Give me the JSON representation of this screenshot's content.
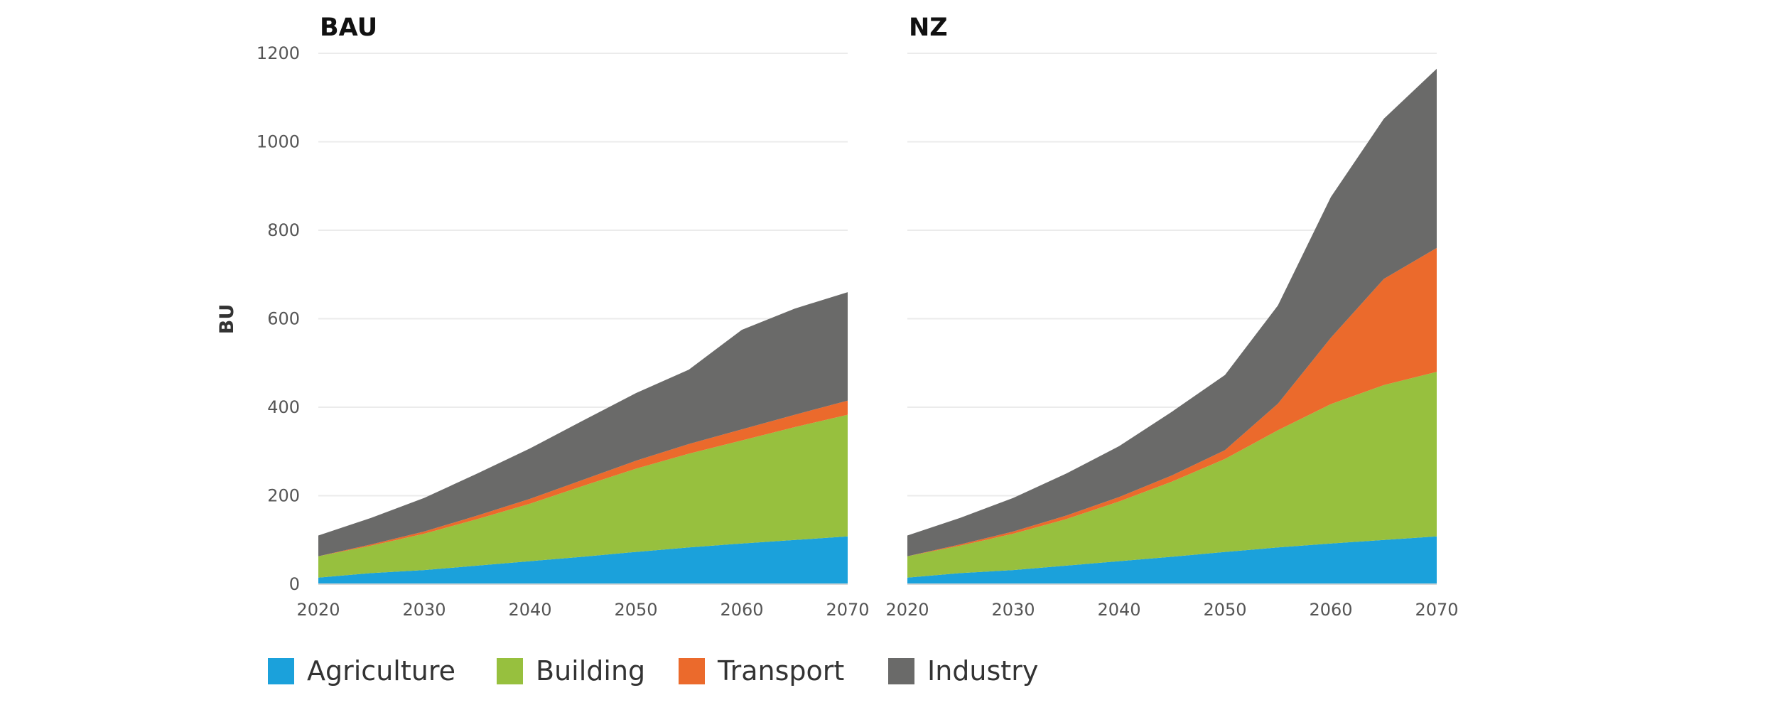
{
  "chart_data": [
    {
      "type": "area",
      "stacked": true,
      "title": "BAU",
      "ylabel": "BU",
      "xlabel": "",
      "ylim": [
        0,
        1200
      ],
      "xlim": [
        2020,
        2070
      ],
      "yticks": [
        0,
        200,
        400,
        600,
        800,
        1000,
        1200
      ],
      "xticks": [
        2020,
        2030,
        2040,
        2050,
        2060,
        2070
      ],
      "grid": true,
      "x": [
        2020,
        2025,
        2030,
        2035,
        2040,
        2045,
        2050,
        2055,
        2060,
        2065,
        2070
      ],
      "series": [
        {
          "name": "Agriculture",
          "values": [
            15,
            25,
            32,
            42,
            52,
            62,
            73,
            83,
            92,
            100,
            108
          ]
        },
        {
          "name": "Building",
          "values": [
            48,
            62,
            82,
            105,
            130,
            160,
            188,
            212,
            233,
            255,
            275
          ]
        },
        {
          "name": "Transport",
          "values": [
            0,
            3,
            5,
            8,
            11,
            14,
            18,
            22,
            25,
            28,
            32
          ]
        },
        {
          "name": "Industry",
          "values": [
            47,
            60,
            76,
            95,
            114,
            134,
            153,
            168,
            225,
            240,
            245
          ]
        }
      ]
    },
    {
      "type": "area",
      "stacked": true,
      "title": "NZ",
      "xlabel": "",
      "ylim": [
        0,
        1200
      ],
      "xlim": [
        2020,
        2070
      ],
      "yticks": [
        0,
        200,
        400,
        600,
        800,
        1000,
        1200
      ],
      "xticks": [
        2020,
        2030,
        2040,
        2050,
        2060,
        2070
      ],
      "grid": true,
      "x": [
        2020,
        2025,
        2030,
        2035,
        2040,
        2045,
        2050,
        2055,
        2060,
        2065,
        2070
      ],
      "series": [
        {
          "name": "Agriculture",
          "values": [
            15,
            25,
            32,
            42,
            52,
            62,
            73,
            83,
            92,
            100,
            108
          ]
        },
        {
          "name": "Building",
          "values": [
            48,
            62,
            82,
            105,
            135,
            170,
            210,
            265,
            315,
            350,
            372
          ]
        },
        {
          "name": "Transport",
          "values": [
            0,
            3,
            5,
            8,
            10,
            14,
            20,
            60,
            150,
            240,
            280
          ]
        },
        {
          "name": "Industry",
          "values": [
            47,
            60,
            76,
            95,
            115,
            144,
            170,
            222,
            318,
            362,
            405
          ]
        }
      ]
    }
  ],
  "legend": {
    "position": "bottom",
    "items": [
      {
        "label": "Agriculture",
        "color": "#1ba1db"
      },
      {
        "label": "Building",
        "color": "#97c03e"
      },
      {
        "label": "Transport",
        "color": "#eb6a2c"
      },
      {
        "label": "Industry",
        "color": "#6a6a69"
      }
    ]
  }
}
